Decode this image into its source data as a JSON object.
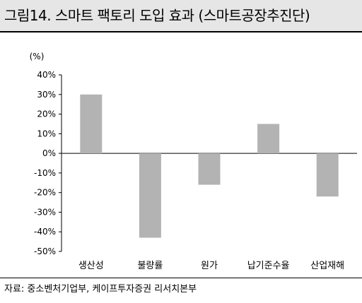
{
  "figure": {
    "title": "그림14. 스마트 팩토리 도입 효과 (스마트공장추진단)",
    "source": "자료: 중소벤처기업부, 케이프투자증권 리서치본부"
  },
  "chart_data": {
    "type": "bar",
    "unit_label": "(%)",
    "categories": [
      "생산성",
      "불량률",
      "원가",
      "납기준수율",
      "산업재해"
    ],
    "values": [
      30,
      -43,
      -16,
      15,
      -22
    ],
    "ylim": [
      -50,
      40
    ],
    "yticks": [
      40,
      30,
      20,
      10,
      0,
      -10,
      -20,
      -30,
      -40,
      -50
    ],
    "ytick_labels": [
      "40%",
      "30%",
      "20%",
      "10%",
      "0%",
      "-10%",
      "-20%",
      "-30%",
      "-40%",
      "-50%"
    ],
    "bar_color": "#b3b3b3",
    "grid": false,
    "legend": "none"
  }
}
